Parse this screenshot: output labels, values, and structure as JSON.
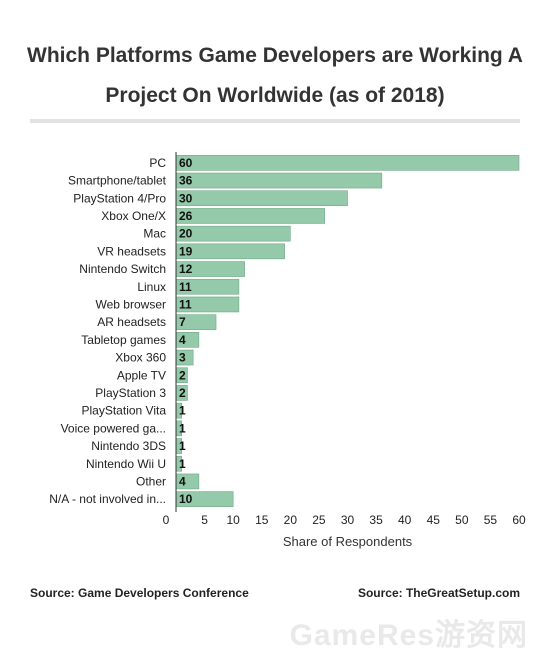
{
  "chart_data": {
    "type": "bar",
    "orientation": "horizontal",
    "title": "Which Platforms Game Developers are Working A Project On Worldwide (as of 2018)",
    "categories": [
      "PC",
      "Smartphone/tablet",
      "PlayStation 4/Pro",
      "Xbox One/X",
      "Mac",
      "VR headsets",
      "Nintendo Switch",
      "Linux",
      "Web browser",
      "AR headsets",
      "Tabletop games",
      "Xbox 360",
      "Apple TV",
      "PlayStation 3",
      "PlayStation Vita",
      "Voice powered ga...",
      "Nintendo 3DS",
      "Nintendo Wii U",
      "Other",
      "N/A - not involved in..."
    ],
    "values": [
      60,
      36,
      30,
      26,
      20,
      19,
      12,
      11,
      11,
      7,
      4,
      3,
      2,
      2,
      1,
      1,
      1,
      1,
      4,
      10
    ],
    "xlabel": "Share of Respondents",
    "ylabel": "",
    "xlim": [
      0,
      60
    ],
    "xticks": [
      0,
      5,
      10,
      15,
      20,
      25,
      30,
      35,
      40,
      45,
      50,
      55,
      60
    ],
    "grid": false,
    "legend": "none",
    "bar_color": "#94c9a9",
    "bar_stroke": "#6fa886"
  },
  "footer": {
    "source_left": "Source: Game Developers Conference",
    "source_right": "Source: TheGreatSetup.com"
  },
  "watermark": "GameRes游资网"
}
